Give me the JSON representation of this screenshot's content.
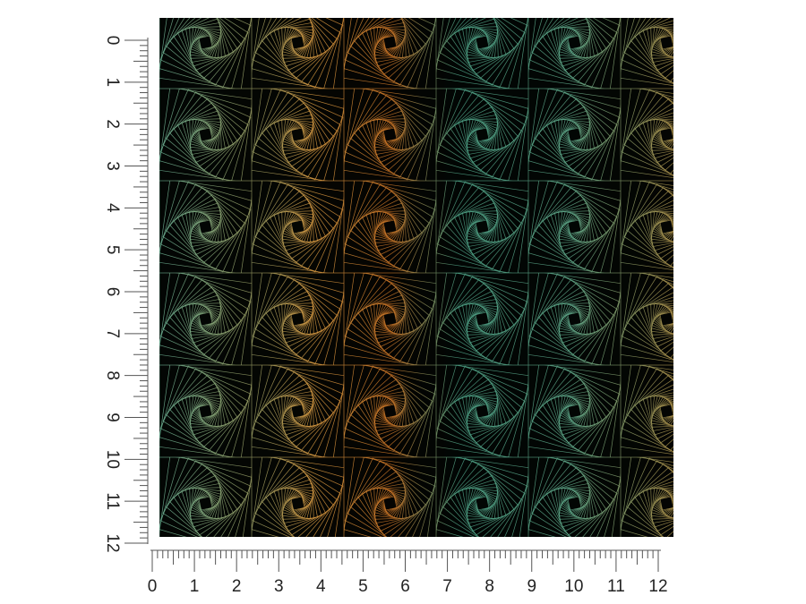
{
  "left_ruler": {
    "labels": [
      0,
      1,
      2,
      3,
      4,
      5,
      6,
      7,
      8,
      9,
      10,
      11,
      12
    ]
  },
  "bottom_ruler": {
    "labels": [
      0,
      1,
      2,
      3,
      4,
      5,
      6,
      7,
      8,
      9,
      10,
      11,
      12
    ]
  }
}
